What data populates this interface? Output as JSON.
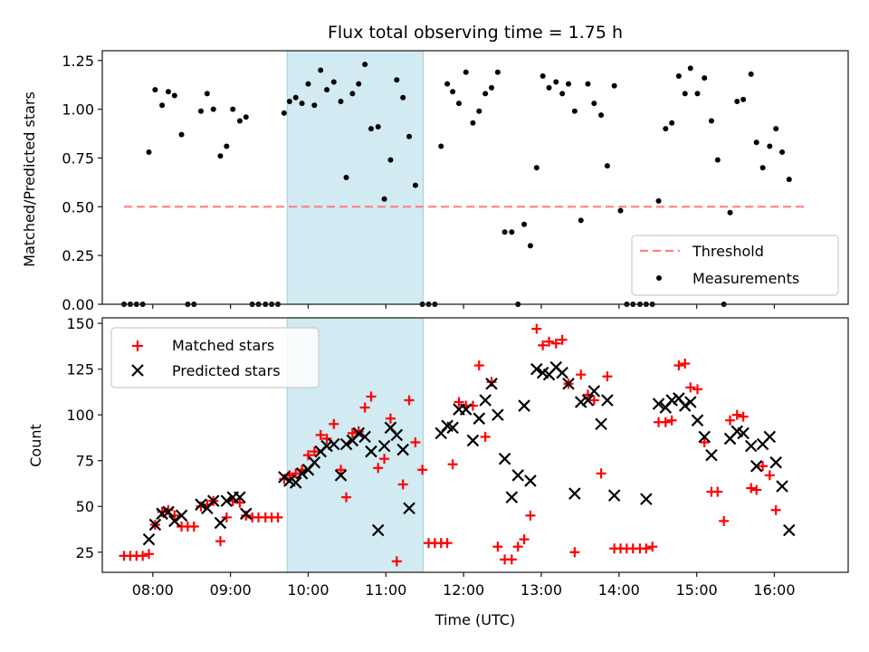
{
  "chart_data": [
    {
      "type": "scatter",
      "title": "Flux total observing time = 1.75 h",
      "xlabel": "",
      "ylabel": "Matched/Predicted stars",
      "xlim_hours": [
        7.35,
        16.95
      ],
      "ylim": [
        0.0,
        1.3
      ],
      "yticks": [
        0.0,
        0.25,
        0.5,
        0.75,
        1.0,
        1.25
      ],
      "ytick_labels": [
        "0.00",
        "0.25",
        "0.50",
        "0.75",
        "1.00",
        "1.25"
      ],
      "xticks_hours": [
        8,
        9,
        10,
        11,
        12,
        13,
        14,
        15,
        16
      ],
      "highlight_span_hours": [
        9.73,
        11.48
      ],
      "threshold": {
        "label": "Threshold",
        "value": 0.5,
        "x_range_hours": [
          7.63,
          16.4
        ],
        "color": "#ff7f7f",
        "style": "dashed"
      },
      "measurements_label": "Measurements",
      "legend": {
        "location": "lower-right",
        "entries": [
          "Threshold",
          "Measurements"
        ]
      },
      "grid": false
    },
    {
      "type": "scatter",
      "xlabel": "Time (UTC)",
      "ylabel": "Count",
      "xlim_hours": [
        7.35,
        16.95
      ],
      "ylim": [
        14,
        153
      ],
      "yticks": [
        25,
        50,
        75,
        100,
        125,
        150
      ],
      "ytick_labels": [
        "25",
        "50",
        "75",
        "100",
        "125",
        "150"
      ],
      "xticks_hours": [
        8,
        9,
        10,
        11,
        12,
        13,
        14,
        15,
        16
      ],
      "xtick_labels": [
        "08:00",
        "09:00",
        "10:00",
        "11:00",
        "12:00",
        "13:00",
        "14:00",
        "15:00",
        "16:00"
      ],
      "highlight_span_hours": [
        9.73,
        11.48
      ],
      "series": [
        {
          "name": "Matched stars",
          "marker": "+",
          "color": "#ff0000"
        },
        {
          "name": "Predicted stars",
          "marker": "x",
          "color": "#000000"
        }
      ],
      "legend": {
        "location": "upper-left",
        "entries": [
          "Matched stars",
          "Predicted stars"
        ]
      },
      "grid": false
    }
  ],
  "observations": {
    "time_hours": [
      7.63,
      7.71,
      7.79,
      7.87,
      7.95,
      8.03,
      8.12,
      8.2,
      8.28,
      8.37,
      8.45,
      8.53,
      8.62,
      8.7,
      8.78,
      8.87,
      8.95,
      9.03,
      9.12,
      9.2,
      9.28,
      9.36,
      9.45,
      9.53,
      9.61,
      9.69,
      9.76,
      9.84,
      9.92,
      10.0,
      10.08,
      10.16,
      10.24,
      10.33,
      10.42,
      10.49,
      10.57,
      10.65,
      10.73,
      10.81,
      10.9,
      10.98,
      11.06,
      11.14,
      11.22,
      11.3,
      11.38,
      11.47,
      11.55,
      11.63,
      11.71,
      11.79,
      11.86,
      11.94,
      12.03,
      12.12,
      12.2,
      12.28,
      12.36,
      12.44,
      12.53,
      12.62,
      12.7,
      12.78,
      12.86,
      12.94,
      13.02,
      13.1,
      13.19,
      13.27,
      13.35,
      13.43,
      13.51,
      13.6,
      13.68,
      13.77,
      13.85,
      13.94,
      14.02,
      14.1,
      14.18,
      14.27,
      14.35,
      14.43,
      14.51,
      14.6,
      14.68,
      14.77,
      14.85,
      14.92,
      15.01,
      15.1,
      15.19,
      15.27,
      15.35,
      15.43,
      15.52,
      15.6,
      15.7,
      15.77,
      15.85,
      15.94,
      16.02,
      16.1,
      16.19,
      16.27,
      16.35
    ],
    "matched": [
      23,
      23,
      23,
      23,
      24,
      40,
      47,
      48,
      45,
      39,
      39,
      39,
      50,
      51,
      53,
      31,
      44,
      53,
      52,
      45,
      44,
      44,
      44,
      44,
      44,
      65,
      67,
      68,
      70,
      78,
      80,
      89,
      87,
      95,
      70,
      55,
      90,
      91,
      104,
      110,
      71,
      76,
      98,
      20,
      62,
      108,
      85,
      70,
      30,
      30,
      30,
      30,
      73,
      107,
      105,
      105,
      127,
      88,
      118,
      28,
      21,
      21,
      28,
      32,
      45,
      147,
      138,
      140,
      139,
      141,
      117,
      25,
      122,
      111,
      108,
      68,
      121,
      27,
      27,
      27,
      27,
      27,
      27,
      28,
      96,
      96,
      97,
      127,
      128,
      115,
      114,
      85,
      58,
      58,
      42,
      97,
      100,
      99,
      60,
      59,
      72,
      67,
      48
    ],
    "predicted": [
      null,
      null,
      null,
      null,
      32,
      40,
      46,
      47,
      42,
      45,
      null,
      null,
      51,
      49,
      53,
      41,
      53,
      55,
      55,
      46,
      null,
      null,
      null,
      null,
      null,
      66,
      64,
      63,
      68,
      70,
      74,
      80,
      83,
      84,
      67,
      84,
      86,
      90,
      88,
      80,
      37,
      83,
      93,
      89,
      81,
      49,
      null,
      null,
      null,
      null,
      90,
      94,
      93,
      103,
      103,
      86,
      98,
      108,
      117,
      100,
      76,
      55,
      67,
      105,
      64,
      125,
      123,
      122,
      126,
      123,
      117,
      57,
      107,
      108,
      113,
      95,
      108,
      56,
      null,
      null,
      null,
      null,
      54,
      null,
      106,
      104,
      108,
      109,
      105,
      107,
      97,
      88,
      78,
      null,
      null,
      87,
      91,
      90,
      83,
      72,
      84,
      88,
      74,
      61,
      37
    ],
    "ratio": [
      0,
      0,
      0,
      0,
      0.78,
      1.1,
      1.02,
      1.09,
      1.07,
      0.87,
      0,
      0,
      0.99,
      1.08,
      1.0,
      0.76,
      0.81,
      1.0,
      0.94,
      0.96,
      0,
      0,
      0,
      0,
      0,
      0.98,
      1.04,
      1.06,
      1.03,
      1.13,
      1.02,
      1.2,
      1.1,
      1.14,
      1.04,
      0.65,
      1.08,
      1.13,
      1.23,
      0.9,
      0.91,
      0.54,
      0.74,
      1.15,
      1.06,
      0.86,
      0.61,
      0,
      0,
      0,
      0.81,
      1.13,
      1.09,
      1.03,
      1.19,
      0.93,
      0.99,
      1.08,
      1.11,
      1.19,
      0.37,
      0.37,
      0,
      0.41,
      0.3,
      0.7,
      1.17,
      1.11,
      1.14,
      1.08,
      1.13,
      0.99,
      0.43,
      1.13,
      1.03,
      0.97,
      0.71,
      1.12,
      0.48,
      0,
      0,
      0,
      0,
      0,
      0.53,
      0.9,
      0.93,
      1.17,
      1.08,
      1.21,
      1.08,
      1.16,
      0.94,
      0.74,
      0,
      0.47,
      1.04,
      1.05,
      1.18,
      0.83,
      0.7,
      0.81,
      0.9,
      0.78,
      0.64
    ]
  }
}
